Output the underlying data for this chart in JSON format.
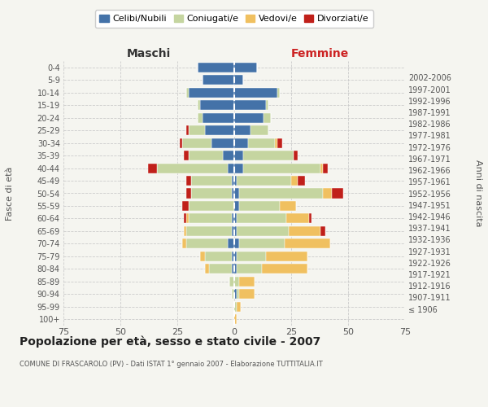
{
  "age_groups": [
    "100+",
    "95-99",
    "90-94",
    "85-89",
    "80-84",
    "75-79",
    "70-74",
    "65-69",
    "60-64",
    "55-59",
    "50-54",
    "45-49",
    "40-44",
    "35-39",
    "30-34",
    "25-29",
    "20-24",
    "15-19",
    "10-14",
    "5-9",
    "0-4"
  ],
  "birth_years": [
    "≤ 1906",
    "1907-1911",
    "1912-1916",
    "1917-1921",
    "1922-1926",
    "1927-1931",
    "1932-1936",
    "1937-1941",
    "1942-1946",
    "1947-1951",
    "1952-1956",
    "1957-1961",
    "1962-1966",
    "1967-1971",
    "1972-1976",
    "1977-1981",
    "1982-1986",
    "1987-1991",
    "1992-1996",
    "1997-2001",
    "2002-2006"
  ],
  "male": {
    "celibi": [
      0,
      0,
      0,
      0,
      1,
      1,
      3,
      1,
      1,
      0,
      1,
      1,
      3,
      5,
      10,
      13,
      14,
      15,
      20,
      14,
      16
    ],
    "coniugati": [
      0,
      0,
      1,
      2,
      10,
      12,
      18,
      20,
      19,
      20,
      18,
      18,
      31,
      15,
      13,
      7,
      2,
      1,
      1,
      0,
      0
    ],
    "vedovi": [
      0,
      0,
      0,
      0,
      2,
      2,
      2,
      1,
      1,
      0,
      0,
      0,
      0,
      0,
      0,
      0,
      0,
      0,
      0,
      0,
      0
    ],
    "divorziati": [
      0,
      0,
      0,
      0,
      0,
      0,
      0,
      0,
      1,
      3,
      2,
      2,
      4,
      2,
      1,
      1,
      0,
      0,
      0,
      0,
      0
    ]
  },
  "female": {
    "nubili": [
      0,
      0,
      1,
      0,
      1,
      1,
      2,
      1,
      1,
      2,
      2,
      1,
      4,
      4,
      6,
      7,
      13,
      14,
      19,
      4,
      10
    ],
    "coniugate": [
      0,
      1,
      1,
      2,
      11,
      13,
      20,
      23,
      22,
      18,
      37,
      24,
      34,
      22,
      12,
      8,
      3,
      1,
      1,
      0,
      0
    ],
    "vedove": [
      1,
      2,
      7,
      7,
      20,
      18,
      20,
      14,
      10,
      7,
      4,
      3,
      1,
      0,
      1,
      0,
      0,
      0,
      0,
      0,
      0
    ],
    "divorziate": [
      0,
      0,
      0,
      0,
      0,
      0,
      0,
      2,
      1,
      0,
      5,
      3,
      2,
      2,
      2,
      0,
      0,
      0,
      0,
      0,
      0
    ]
  },
  "colors": {
    "celibi": "#4472a8",
    "coniugati": "#c5d5a0",
    "vedovi": "#f0c060",
    "divorziati": "#c0201a"
  },
  "title": "Popolazione per età, sesso e stato civile - 2007",
  "subtitle": "COMUNE DI FRASCAROLO (PV) - Dati ISTAT 1° gennaio 2007 - Elaborazione TUTTITALIA.IT",
  "xlabel_left": "Maschi",
  "xlabel_right": "Femmine",
  "ylabel_left": "Fasce di età",
  "ylabel_right": "Anni di nascita",
  "xlim": 75,
  "background_color": "#f5f5f0",
  "legend_labels": [
    "Celibi/Nubili",
    "Coniugati/e",
    "Vedovi/e",
    "Divorziati/e"
  ]
}
